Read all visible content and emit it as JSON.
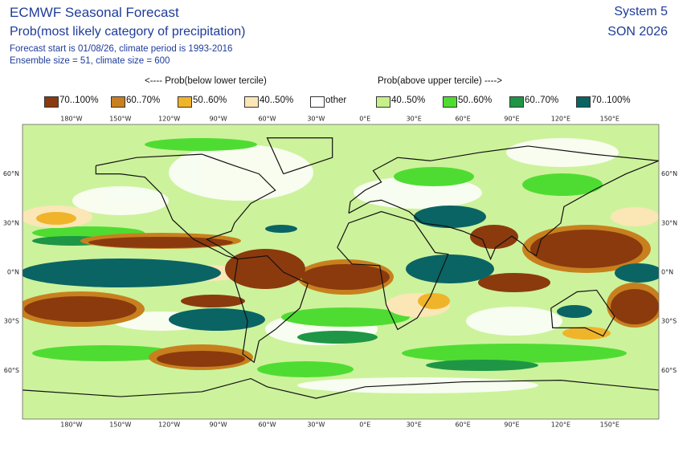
{
  "header": {
    "title": "ECMWF Seasonal Forecast",
    "subtitle": "Prob(most likely category of precipitation)",
    "info_1": "Forecast start is 01/08/26, climate period is 1993-2016",
    "info_2": "Ensemble size = 51, climate size = 600",
    "system": "System 5",
    "season": "SON 2026"
  },
  "legend": {
    "below_label": "<---- Prob(below lower tercile)",
    "above_label": "Prob(above upper tercile) ---->",
    "items": [
      {
        "label": "70..100%",
        "color": "#8b3a0e"
      },
      {
        "label": "60..70%",
        "color": "#c8801e"
      },
      {
        "label": "50..60%",
        "color": "#f0b42a"
      },
      {
        "label": "40..50%",
        "color": "#fbe6b6"
      },
      {
        "label": "other",
        "color": "#ffffff"
      },
      {
        "label": "40..50%",
        "color": "#c6f08a"
      },
      {
        "label": "50..60%",
        "color": "#4fdc32"
      },
      {
        "label": "60..70%",
        "color": "#1e9646"
      },
      {
        "label": "70..100%",
        "color": "#0a6464"
      }
    ]
  },
  "map": {
    "lon_labels": [
      "180°W",
      "150°W",
      "120°W",
      "90°W",
      "60°W",
      "30°W",
      "0°E",
      "30°E",
      "60°E",
      "90°E",
      "120°E",
      "150°E"
    ],
    "lat_labels": [
      "60°N",
      "30°N",
      "0°N",
      "30°S",
      "60°S"
    ]
  }
}
